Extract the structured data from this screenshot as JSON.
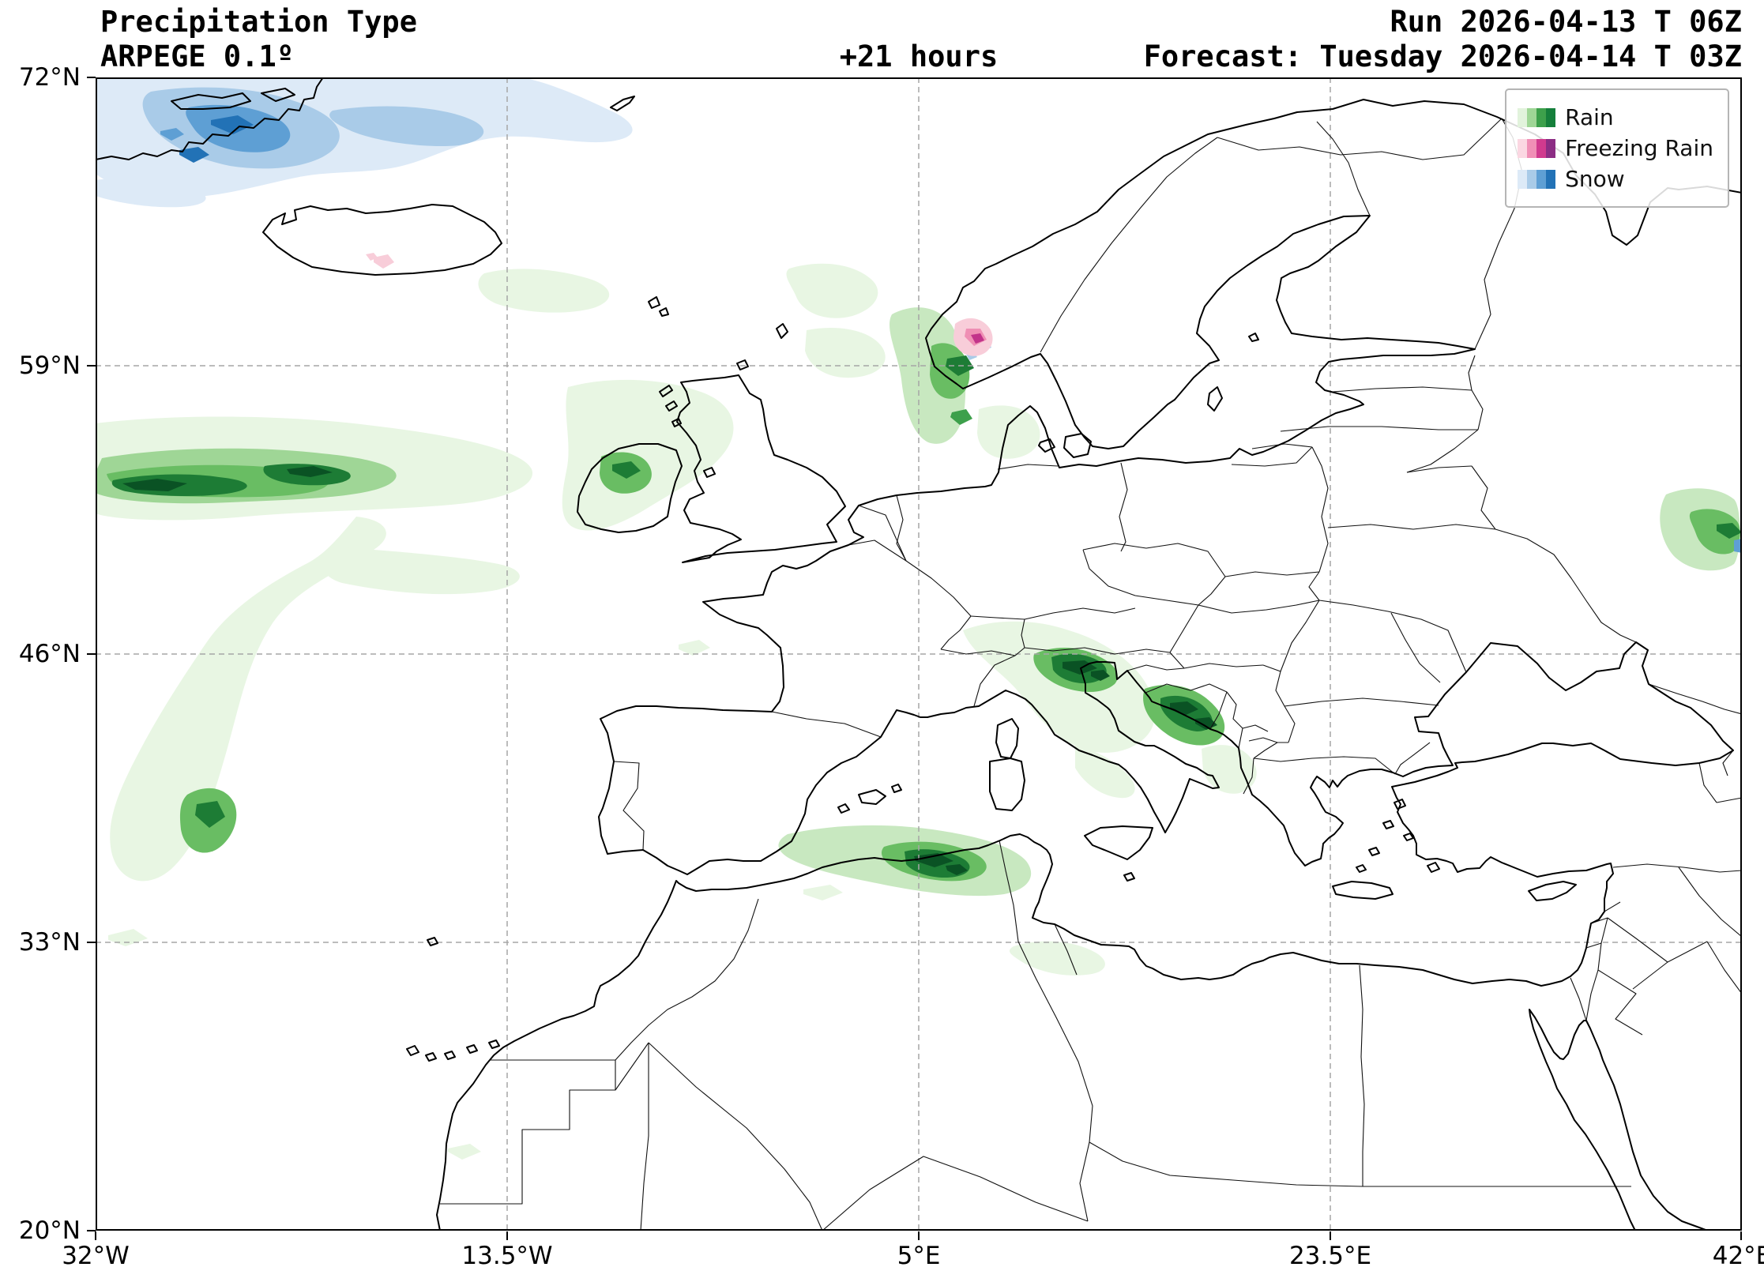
{
  "header": {
    "title": "Precipitation Type",
    "model": "ARPEGE 0.1º",
    "lead_time": "+21 hours",
    "run_label": "Run 2026-04-13 T 06Z",
    "forecast_label": "Forecast: Tuesday 2026-04-14 T 03Z"
  },
  "axes": {
    "lat_ticks": [
      "72°N",
      "59°N",
      "46°N",
      "33°N",
      "20°N"
    ],
    "lon_ticks": [
      "32°W",
      "13.5°W",
      "5°E",
      "23.5°E",
      "42°E"
    ]
  },
  "legend": {
    "items": [
      {
        "label": "Rain",
        "colors": [
          "#e2f3dc",
          "#9fd696",
          "#3da04b",
          "#157f3b"
        ]
      },
      {
        "label": "Freezing Rain",
        "colors": [
          "#fbd7e2",
          "#f08fb6",
          "#d13a8e",
          "#8c2d84"
        ]
      },
      {
        "label": "Snow",
        "colors": [
          "#ddeaf7",
          "#a9cbe8",
          "#5e9fd4",
          "#2272b6"
        ]
      }
    ]
  },
  "map": {
    "projection_note": "",
    "grid_color": "#a6a6a6",
    "coast_color": "#000000"
  }
}
